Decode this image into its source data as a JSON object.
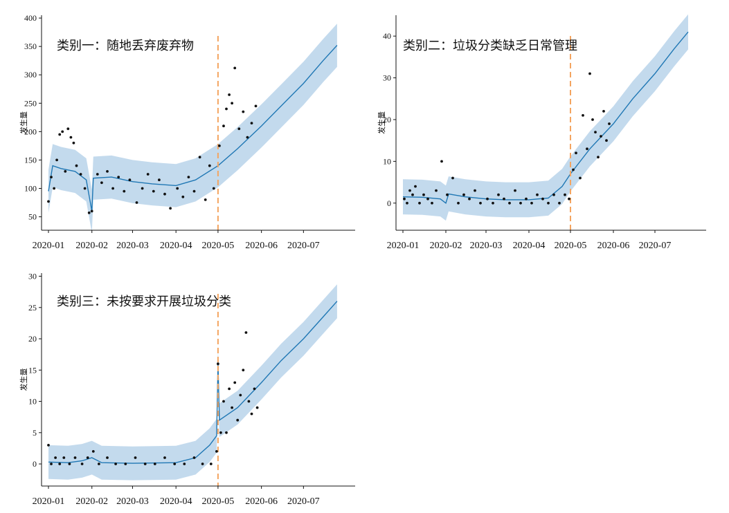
{
  "chart_data": [
    {
      "type": "line",
      "title": "类别一：随地丢弃废弃物",
      "ylabel": "发生量",
      "x_ticks": [
        "2020-01",
        "2020-02",
        "2020-03",
        "2020-04",
        "2020-05",
        "2020-06",
        "2020-07"
      ],
      "y_ticks": [
        50,
        100,
        150,
        200,
        250,
        300,
        350,
        400
      ],
      "ylim": [
        30,
        405
      ],
      "changepoint": "2020-05",
      "forecast": [
        {
          "date": "2020-01-01",
          "yhat": 95
        },
        {
          "date": "2020-01-04",
          "yhat": 140
        },
        {
          "date": "2020-01-10",
          "yhat": 135
        },
        {
          "date": "2020-01-20",
          "yhat": 130
        },
        {
          "date": "2020-01-28",
          "yhat": 115
        },
        {
          "date": "2020-02-01",
          "yhat": 60
        },
        {
          "date": "2020-02-02",
          "yhat": 118
        },
        {
          "date": "2020-02-15",
          "yhat": 120
        },
        {
          "date": "2020-03-01",
          "yhat": 112
        },
        {
          "date": "2020-03-15",
          "yhat": 108
        },
        {
          "date": "2020-04-01",
          "yhat": 105
        },
        {
          "date": "2020-04-15",
          "yhat": 115
        },
        {
          "date": "2020-05-01",
          "yhat": 140
        },
        {
          "date": "2020-05-15",
          "yhat": 170
        },
        {
          "date": "2020-06-01",
          "yhat": 210
        },
        {
          "date": "2020-06-15",
          "yhat": 245
        },
        {
          "date": "2020-07-01",
          "yhat": 285
        },
        {
          "date": "2020-07-15",
          "yhat": 325
        },
        {
          "date": "2020-07-25",
          "yhat": 352
        }
      ],
      "band_width": 38,
      "points": [
        {
          "date": "2020-01-01",
          "y": 77
        },
        {
          "date": "2020-01-03",
          "y": 120
        },
        {
          "date": "2020-01-05",
          "y": 100
        },
        {
          "date": "2020-01-07",
          "y": 150
        },
        {
          "date": "2020-01-09",
          "y": 195
        },
        {
          "date": "2020-01-11",
          "y": 200
        },
        {
          "date": "2020-01-13",
          "y": 130
        },
        {
          "date": "2020-01-15",
          "y": 205
        },
        {
          "date": "2020-01-17",
          "y": 190
        },
        {
          "date": "2020-01-19",
          "y": 180
        },
        {
          "date": "2020-01-21",
          "y": 140
        },
        {
          "date": "2020-01-24",
          "y": 125
        },
        {
          "date": "2020-01-27",
          "y": 100
        },
        {
          "date": "2020-01-30",
          "y": 57
        },
        {
          "date": "2020-02-01",
          "y": 60
        },
        {
          "date": "2020-02-05",
          "y": 125
        },
        {
          "date": "2020-02-08",
          "y": 110
        },
        {
          "date": "2020-02-12",
          "y": 130
        },
        {
          "date": "2020-02-16",
          "y": 100
        },
        {
          "date": "2020-02-20",
          "y": 120
        },
        {
          "date": "2020-02-24",
          "y": 95
        },
        {
          "date": "2020-02-28",
          "y": 115
        },
        {
          "date": "2020-03-04",
          "y": 75
        },
        {
          "date": "2020-03-08",
          "y": 100
        },
        {
          "date": "2020-03-12",
          "y": 125
        },
        {
          "date": "2020-03-16",
          "y": 95
        },
        {
          "date": "2020-03-20",
          "y": 115
        },
        {
          "date": "2020-03-24",
          "y": 90
        },
        {
          "date": "2020-03-28",
          "y": 65
        },
        {
          "date": "2020-04-02",
          "y": 100
        },
        {
          "date": "2020-04-06",
          "y": 85
        },
        {
          "date": "2020-04-10",
          "y": 120
        },
        {
          "date": "2020-04-14",
          "y": 95
        },
        {
          "date": "2020-04-18",
          "y": 155
        },
        {
          "date": "2020-04-22",
          "y": 80
        },
        {
          "date": "2020-04-25",
          "y": 140
        },
        {
          "date": "2020-04-28",
          "y": 100
        },
        {
          "date": "2020-05-02",
          "y": 175
        },
        {
          "date": "2020-05-05",
          "y": 210
        },
        {
          "date": "2020-05-07",
          "y": 240
        },
        {
          "date": "2020-05-09",
          "y": 265
        },
        {
          "date": "2020-05-11",
          "y": 250
        },
        {
          "date": "2020-05-13",
          "y": 312
        },
        {
          "date": "2020-05-16",
          "y": 205
        },
        {
          "date": "2020-05-19",
          "y": 235
        },
        {
          "date": "2020-05-22",
          "y": 190
        },
        {
          "date": "2020-05-25",
          "y": 215
        },
        {
          "date": "2020-05-28",
          "y": 245
        }
      ]
    },
    {
      "type": "line",
      "title": "类别二：垃圾分类缺乏日常管理",
      "ylabel": "发生量",
      "x_ticks": [
        "2020-01",
        "2020-02",
        "2020-03",
        "2020-04",
        "2020-05",
        "2020-06",
        "2020-07"
      ],
      "y_ticks": [
        0,
        10,
        20,
        30,
        40
      ],
      "ylim": [
        -6,
        45
      ],
      "changepoint": "2020-05",
      "forecast": [
        {
          "date": "2020-01-01",
          "yhat": 1.5
        },
        {
          "date": "2020-01-15",
          "yhat": 1.4
        },
        {
          "date": "2020-01-28",
          "yhat": 1.0
        },
        {
          "date": "2020-02-01",
          "yhat": 0
        },
        {
          "date": "2020-02-03",
          "yhat": 2.2
        },
        {
          "date": "2020-02-15",
          "yhat": 1.5
        },
        {
          "date": "2020-03-01",
          "yhat": 1.0
        },
        {
          "date": "2020-03-15",
          "yhat": 0.8
        },
        {
          "date": "2020-04-01",
          "yhat": 0.8
        },
        {
          "date": "2020-04-15",
          "yhat": 1.2
        },
        {
          "date": "2020-04-25",
          "yhat": 4
        },
        {
          "date": "2020-05-01",
          "yhat": 7
        },
        {
          "date": "2020-05-15",
          "yhat": 13
        },
        {
          "date": "2020-06-01",
          "yhat": 19
        },
        {
          "date": "2020-06-15",
          "yhat": 25
        },
        {
          "date": "2020-07-01",
          "yhat": 31
        },
        {
          "date": "2020-07-15",
          "yhat": 37
        },
        {
          "date": "2020-07-25",
          "yhat": 41
        }
      ],
      "band_width": 4.2,
      "points": [
        {
          "date": "2020-01-02",
          "y": 1
        },
        {
          "date": "2020-01-04",
          "y": 0
        },
        {
          "date": "2020-01-06",
          "y": 3
        },
        {
          "date": "2020-01-08",
          "y": 2
        },
        {
          "date": "2020-01-10",
          "y": 4
        },
        {
          "date": "2020-01-13",
          "y": 0
        },
        {
          "date": "2020-01-16",
          "y": 2
        },
        {
          "date": "2020-01-19",
          "y": 1
        },
        {
          "date": "2020-01-22",
          "y": 0
        },
        {
          "date": "2020-01-25",
          "y": 3
        },
        {
          "date": "2020-01-29",
          "y": 10
        },
        {
          "date": "2020-02-02",
          "y": 2
        },
        {
          "date": "2020-02-06",
          "y": 6
        },
        {
          "date": "2020-02-10",
          "y": 0
        },
        {
          "date": "2020-02-14",
          "y": 2
        },
        {
          "date": "2020-02-18",
          "y": 1
        },
        {
          "date": "2020-02-22",
          "y": 3
        },
        {
          "date": "2020-02-26",
          "y": 0
        },
        {
          "date": "2020-03-02",
          "y": 1
        },
        {
          "date": "2020-03-06",
          "y": 0
        },
        {
          "date": "2020-03-10",
          "y": 2
        },
        {
          "date": "2020-03-14",
          "y": 1
        },
        {
          "date": "2020-03-18",
          "y": 0
        },
        {
          "date": "2020-03-22",
          "y": 3
        },
        {
          "date": "2020-03-26",
          "y": 0
        },
        {
          "date": "2020-03-30",
          "y": 1
        },
        {
          "date": "2020-04-03",
          "y": 0
        },
        {
          "date": "2020-04-07",
          "y": 2
        },
        {
          "date": "2020-04-11",
          "y": 1
        },
        {
          "date": "2020-04-15",
          "y": 0
        },
        {
          "date": "2020-04-19",
          "y": 2
        },
        {
          "date": "2020-04-23",
          "y": 0
        },
        {
          "date": "2020-04-27",
          "y": 2
        },
        {
          "date": "2020-04-30",
          "y": 1
        },
        {
          "date": "2020-05-03",
          "y": 8
        },
        {
          "date": "2020-05-05",
          "y": 12
        },
        {
          "date": "2020-05-08",
          "y": 6
        },
        {
          "date": "2020-05-10",
          "y": 21
        },
        {
          "date": "2020-05-13",
          "y": 13
        },
        {
          "date": "2020-05-15",
          "y": 31
        },
        {
          "date": "2020-05-17",
          "y": 20
        },
        {
          "date": "2020-05-19",
          "y": 17
        },
        {
          "date": "2020-05-21",
          "y": 11
        },
        {
          "date": "2020-05-23",
          "y": 16
        },
        {
          "date": "2020-05-25",
          "y": 22
        },
        {
          "date": "2020-05-27",
          "y": 15
        },
        {
          "date": "2020-05-29",
          "y": 19
        }
      ]
    },
    {
      "type": "line",
      "title": "类别三：未按要求开展垃圾分类",
      "ylabel": "发生量",
      "x_ticks": [
        "2020-01",
        "2020-02",
        "2020-03",
        "2020-04",
        "2020-05",
        "2020-06",
        "2020-07"
      ],
      "y_ticks": [
        0,
        5,
        10,
        15,
        20,
        25,
        30
      ],
      "ylim": [
        -3.2,
        30.5
      ],
      "changepoint": "2020-05",
      "forecast": [
        {
          "date": "2020-01-01",
          "yhat": 0.3
        },
        {
          "date": "2020-01-15",
          "yhat": 0.2
        },
        {
          "date": "2020-01-25",
          "yhat": 0.5
        },
        {
          "date": "2020-02-01",
          "yhat": 1.0
        },
        {
          "date": "2020-02-08",
          "yhat": 0.2
        },
        {
          "date": "2020-03-01",
          "yhat": 0.1
        },
        {
          "date": "2020-04-01",
          "yhat": 0.2
        },
        {
          "date": "2020-04-15",
          "yhat": 1.0
        },
        {
          "date": "2020-04-25",
          "yhat": 3.0
        },
        {
          "date": "2020-04-30",
          "yhat": 4.5
        },
        {
          "date": "2020-05-01",
          "yhat": 16
        },
        {
          "date": "2020-05-02",
          "yhat": 7
        },
        {
          "date": "2020-05-15",
          "yhat": 9
        },
        {
          "date": "2020-06-01",
          "yhat": 13
        },
        {
          "date": "2020-06-15",
          "yhat": 16.5
        },
        {
          "date": "2020-07-01",
          "yhat": 20
        },
        {
          "date": "2020-07-15",
          "yhat": 23.5
        },
        {
          "date": "2020-07-25",
          "yhat": 26
        }
      ],
      "band_width": 2.7,
      "points": [
        {
          "date": "2020-01-01",
          "y": 3
        },
        {
          "date": "2020-01-03",
          "y": 0
        },
        {
          "date": "2020-01-06",
          "y": 1
        },
        {
          "date": "2020-01-09",
          "y": 0
        },
        {
          "date": "2020-01-12",
          "y": 1
        },
        {
          "date": "2020-01-16",
          "y": 0
        },
        {
          "date": "2020-01-20",
          "y": 1
        },
        {
          "date": "2020-01-25",
          "y": 0
        },
        {
          "date": "2020-01-29",
          "y": 1
        },
        {
          "date": "2020-02-02",
          "y": 2
        },
        {
          "date": "2020-02-06",
          "y": 0
        },
        {
          "date": "2020-02-12",
          "y": 1
        },
        {
          "date": "2020-02-18",
          "y": 0
        },
        {
          "date": "2020-02-25",
          "y": 0
        },
        {
          "date": "2020-03-03",
          "y": 1
        },
        {
          "date": "2020-03-10",
          "y": 0
        },
        {
          "date": "2020-03-17",
          "y": 0
        },
        {
          "date": "2020-03-24",
          "y": 1
        },
        {
          "date": "2020-03-31",
          "y": 0
        },
        {
          "date": "2020-04-07",
          "y": 0
        },
        {
          "date": "2020-04-14",
          "y": 1
        },
        {
          "date": "2020-04-20",
          "y": 0
        },
        {
          "date": "2020-04-26",
          "y": 0
        },
        {
          "date": "2020-04-30",
          "y": 2
        },
        {
          "date": "2020-05-01",
          "y": 16
        },
        {
          "date": "2020-05-03",
          "y": 5
        },
        {
          "date": "2020-05-05",
          "y": 10
        },
        {
          "date": "2020-05-07",
          "y": 5
        },
        {
          "date": "2020-05-09",
          "y": 12
        },
        {
          "date": "2020-05-11",
          "y": 9
        },
        {
          "date": "2020-05-13",
          "y": 13
        },
        {
          "date": "2020-05-15",
          "y": 7
        },
        {
          "date": "2020-05-17",
          "y": 11
        },
        {
          "date": "2020-05-19",
          "y": 15
        },
        {
          "date": "2020-05-21",
          "y": 21
        },
        {
          "date": "2020-05-23",
          "y": 10
        },
        {
          "date": "2020-05-25",
          "y": 8
        },
        {
          "date": "2020-05-27",
          "y": 12
        },
        {
          "date": "2020-05-29",
          "y": 9
        }
      ]
    }
  ]
}
